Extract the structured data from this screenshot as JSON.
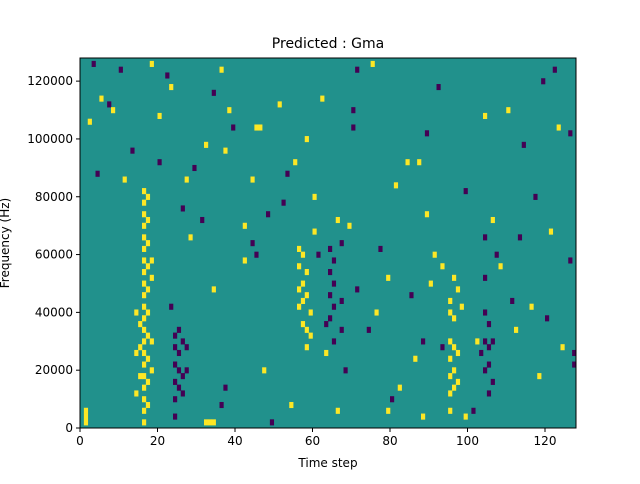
{
  "chart_data": {
    "type": "heatmap",
    "title": "Predicted : Gma",
    "xlabel": "Time step",
    "ylabel": "Frequency (Hz)",
    "xlim": [
      0,
      128
    ],
    "ylim": [
      0,
      128000
    ],
    "x_ticks": [
      0,
      20,
      40,
      60,
      80,
      100,
      120
    ],
    "y_ticks": [
      0,
      20000,
      40000,
      60000,
      80000,
      100000,
      120000
    ],
    "x_tick_labels": [
      "0",
      "20",
      "40",
      "60",
      "80",
      "100",
      "120"
    ],
    "y_tick_labels": [
      "0",
      "20000",
      "40000",
      "60000",
      "80000",
      "100000",
      "120000"
    ],
    "grid": false,
    "colormap": "viridis",
    "colors": {
      "low": "#440154",
      "mid": "#21918c",
      "high": "#fde725"
    },
    "background_value": 0,
    "cell_height_hz": 2000,
    "high_cells": [
      [
        1,
        2000
      ],
      [
        1,
        4000
      ],
      [
        1,
        6000
      ],
      [
        16,
        82000
      ],
      [
        16,
        78000
      ],
      [
        16,
        74000
      ],
      [
        16,
        70000
      ],
      [
        16,
        66000
      ],
      [
        16,
        62000
      ],
      [
        16,
        58000
      ],
      [
        16,
        54000
      ],
      [
        16,
        50000
      ],
      [
        16,
        46000
      ],
      [
        16,
        42000
      ],
      [
        16,
        38000
      ],
      [
        16,
        34000
      ],
      [
        16,
        30000
      ],
      [
        16,
        26000
      ],
      [
        16,
        22000
      ],
      [
        16,
        18000
      ],
      [
        16,
        14000
      ],
      [
        16,
        10000
      ],
      [
        16,
        6000
      ],
      [
        16,
        2000
      ],
      [
        17,
        80000
      ],
      [
        17,
        72000
      ],
      [
        17,
        64000
      ],
      [
        17,
        56000
      ],
      [
        17,
        48000
      ],
      [
        17,
        40000
      ],
      [
        17,
        32000
      ],
      [
        17,
        24000
      ],
      [
        17,
        16000
      ],
      [
        17,
        8000
      ],
      [
        18,
        58000
      ],
      [
        18,
        52000
      ],
      [
        18,
        30000
      ],
      [
        18,
        20000
      ],
      [
        14,
        40000
      ],
      [
        14,
        26000
      ],
      [
        14,
        12000
      ],
      [
        15,
        36000
      ],
      [
        15,
        28000
      ],
      [
        15,
        18000
      ],
      [
        32,
        2000
      ],
      [
        33,
        2000
      ],
      [
        34,
        2000
      ],
      [
        56,
        62000
      ],
      [
        56,
        56000
      ],
      [
        56,
        48000
      ],
      [
        56,
        42000
      ],
      [
        57,
        60000
      ],
      [
        57,
        50000
      ],
      [
        57,
        44000
      ],
      [
        57,
        36000
      ],
      [
        58,
        54000
      ],
      [
        58,
        46000
      ],
      [
        58,
        34000
      ],
      [
        58,
        28000
      ],
      [
        59,
        40000
      ],
      [
        59,
        32000
      ],
      [
        95,
        44000
      ],
      [
        95,
        40000
      ],
      [
        95,
        30000
      ],
      [
        95,
        24000
      ],
      [
        95,
        18000
      ],
      [
        95,
        12000
      ],
      [
        95,
        6000
      ],
      [
        96,
        52000
      ],
      [
        96,
        38000
      ],
      [
        96,
        28000
      ],
      [
        96,
        20000
      ],
      [
        96,
        14000
      ],
      [
        97,
        48000
      ],
      [
        97,
        26000
      ],
      [
        97,
        16000
      ],
      [
        98,
        42000
      ],
      [
        42,
        70000
      ],
      [
        60,
        80000
      ],
      [
        60,
        68000
      ],
      [
        63,
        26000
      ],
      [
        66,
        6000
      ],
      [
        79,
        6000
      ],
      [
        88,
        4000
      ],
      [
        102,
        30000
      ],
      [
        20,
        108000
      ],
      [
        45,
        104000
      ],
      [
        46,
        104000
      ],
      [
        55,
        92000
      ],
      [
        87,
        92000
      ],
      [
        90,
        50000
      ],
      [
        106,
        72000
      ],
      [
        110,
        110000
      ],
      [
        124,
        28000
      ]
    ],
    "low_cells": [
      [
        24,
        32000
      ],
      [
        24,
        28000
      ],
      [
        24,
        22000
      ],
      [
        24,
        16000
      ],
      [
        24,
        10000
      ],
      [
        24,
        4000
      ],
      [
        25,
        34000
      ],
      [
        25,
        26000
      ],
      [
        25,
        20000
      ],
      [
        25,
        14000
      ],
      [
        26,
        30000
      ],
      [
        26,
        18000
      ],
      [
        26,
        12000
      ],
      [
        27,
        28000
      ],
      [
        27,
        20000
      ],
      [
        64,
        62000
      ],
      [
        64,
        54000
      ],
      [
        64,
        46000
      ],
      [
        64,
        38000
      ],
      [
        65,
        58000
      ],
      [
        65,
        50000
      ],
      [
        65,
        42000
      ],
      [
        65,
        30000
      ],
      [
        67,
        64000
      ],
      [
        67,
        44000
      ],
      [
        67,
        34000
      ],
      [
        104,
        66000
      ],
      [
        104,
        52000
      ],
      [
        104,
        40000
      ],
      [
        104,
        30000
      ],
      [
        104,
        20000
      ],
      [
        105,
        36000
      ],
      [
        105,
        28000
      ],
      [
        105,
        22000
      ],
      [
        105,
        12000
      ],
      [
        106,
        30000
      ],
      [
        106,
        16000
      ],
      [
        127,
        26000
      ],
      [
        127,
        22000
      ],
      [
        70,
        110000
      ],
      [
        70,
        104000
      ],
      [
        113,
        66000
      ],
      [
        119,
        120000
      ],
      [
        99,
        82000
      ],
      [
        93,
        28000
      ],
      [
        37,
        14000
      ],
      [
        52,
        78000
      ],
      [
        45,
        60000
      ]
    ],
    "scattered_high_cells": [
      [
        2,
        106000
      ],
      [
        5,
        114000
      ],
      [
        8,
        110000
      ],
      [
        11,
        86000
      ],
      [
        18,
        126000
      ],
      [
        23,
        118000
      ],
      [
        27,
        86000
      ],
      [
        32,
        98000
      ],
      [
        36,
        124000
      ],
      [
        37,
        96000
      ],
      [
        38,
        110000
      ],
      [
        42,
        58000
      ],
      [
        47,
        20000
      ],
      [
        51,
        112000
      ],
      [
        54,
        8000
      ],
      [
        58,
        100000
      ],
      [
        66,
        72000
      ],
      [
        69,
        70000
      ],
      [
        76,
        40000
      ],
      [
        79,
        52000
      ],
      [
        81,
        84000
      ],
      [
        84,
        92000
      ],
      [
        86,
        24000
      ],
      [
        89,
        74000
      ],
      [
        91,
        60000
      ],
      [
        99,
        4000
      ],
      [
        104,
        108000
      ],
      [
        108,
        56000
      ],
      [
        112,
        34000
      ],
      [
        116,
        42000
      ],
      [
        121,
        68000
      ],
      [
        123,
        104000
      ],
      [
        118,
        18000
      ],
      [
        28,
        66000
      ],
      [
        34,
        48000
      ],
      [
        44,
        86000
      ],
      [
        62,
        114000
      ],
      [
        75,
        126000
      ],
      [
        82,
        14000
      ],
      [
        93,
        56000
      ]
    ],
    "scattered_low_cells": [
      [
        3,
        126000
      ],
      [
        4,
        88000
      ],
      [
        7,
        112000
      ],
      [
        10,
        124000
      ],
      [
        13,
        96000
      ],
      [
        20,
        92000
      ],
      [
        22,
        122000
      ],
      [
        26,
        76000
      ],
      [
        29,
        90000
      ],
      [
        31,
        72000
      ],
      [
        34,
        116000
      ],
      [
        39,
        104000
      ],
      [
        44,
        64000
      ],
      [
        48,
        74000
      ],
      [
        53,
        88000
      ],
      [
        61,
        60000
      ],
      [
        63,
        36000
      ],
      [
        68,
        20000
      ],
      [
        71,
        48000
      ],
      [
        74,
        34000
      ],
      [
        77,
        62000
      ],
      [
        80,
        10000
      ],
      [
        85,
        46000
      ],
      [
        89,
        102000
      ],
      [
        92,
        118000
      ],
      [
        101,
        6000
      ],
      [
        103,
        26000
      ],
      [
        107,
        60000
      ],
      [
        111,
        44000
      ],
      [
        114,
        98000
      ],
      [
        117,
        80000
      ],
      [
        120,
        38000
      ],
      [
        122,
        124000
      ],
      [
        126,
        102000
      ],
      [
        126,
        58000
      ],
      [
        23,
        42000
      ],
      [
        36,
        8000
      ],
      [
        49,
        2000
      ],
      [
        71,
        124000
      ],
      [
        88,
        30000
      ]
    ]
  }
}
